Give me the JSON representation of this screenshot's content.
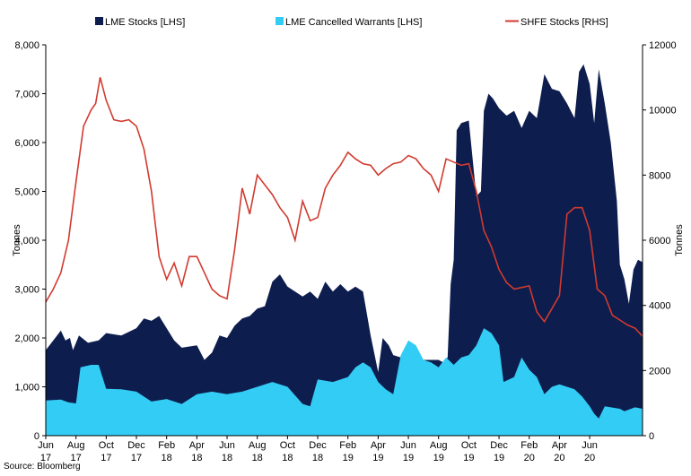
{
  "colors": {
    "lme_stocks": "#0d1d4d",
    "lme_cw": "#33ccf5",
    "shfe": "#d13a2f"
  },
  "source": "Source: Bloomberg",
  "chart_data": {
    "type": "area",
    "ylabel_left": "Tonnes",
    "ylabel_right": "Tonnes",
    "ylim_left": [
      0,
      8000
    ],
    "ylim_right": [
      0,
      12000
    ],
    "yticks_left": [
      "0",
      "1,000",
      "2,000",
      "3,000",
      "4,000",
      "5,000",
      "6,000",
      "7,000",
      "8,000"
    ],
    "yticks_right": [
      "0",
      "2000",
      "4000",
      "6000",
      "8000",
      "10000",
      "12000"
    ],
    "xtick_labels": [
      [
        "Jun",
        "17"
      ],
      [
        "Aug",
        "17"
      ],
      [
        "Oct",
        "17"
      ],
      [
        "Dec",
        "17"
      ],
      [
        "Feb",
        "18"
      ],
      [
        "Apr",
        "18"
      ],
      [
        "Jun",
        "18"
      ],
      [
        "Aug",
        "18"
      ],
      [
        "Oct",
        "18"
      ],
      [
        "Dec",
        "18"
      ],
      [
        "Feb",
        "19"
      ],
      [
        "Apr",
        "19"
      ],
      [
        "Jun",
        "19"
      ],
      [
        "Aug",
        "19"
      ],
      [
        "Oct",
        "19"
      ],
      [
        "Dec",
        "19"
      ],
      [
        "Feb",
        "20"
      ],
      [
        "Apr",
        "20"
      ],
      [
        "Jun",
        "20"
      ]
    ],
    "x_months": [
      0,
      37
    ],
    "grid": false,
    "legend_position": "top",
    "series": [
      {
        "name": "LME Stocks [LHS]",
        "axis": "left",
        "kind": "area",
        "points": [
          [
            0,
            1750
          ],
          [
            0.5,
            1950
          ],
          [
            1,
            2150
          ],
          [
            1.3,
            1950
          ],
          [
            1.6,
            2000
          ],
          [
            1.8,
            1750
          ],
          [
            2.2,
            2050
          ],
          [
            2.8,
            1900
          ],
          [
            3.5,
            1950
          ],
          [
            4,
            2100
          ],
          [
            5,
            2050
          ],
          [
            6,
            2200
          ],
          [
            6.5,
            2400
          ],
          [
            7,
            2350
          ],
          [
            7.5,
            2450
          ],
          [
            8,
            2200
          ],
          [
            8.5,
            1950
          ],
          [
            9,
            1800
          ],
          [
            10,
            1850
          ],
          [
            10.5,
            1550
          ],
          [
            11,
            1700
          ],
          [
            11.5,
            2050
          ],
          [
            12,
            2000
          ],
          [
            12.5,
            2250
          ],
          [
            13,
            2400
          ],
          [
            13.5,
            2450
          ],
          [
            14,
            2600
          ],
          [
            14.5,
            2650
          ],
          [
            15,
            3150
          ],
          [
            15.5,
            3300
          ],
          [
            16,
            3050
          ],
          [
            16.5,
            2950
          ],
          [
            17,
            2850
          ],
          [
            17.5,
            2950
          ],
          [
            18,
            2800
          ],
          [
            18.5,
            3150
          ],
          [
            19,
            2950
          ],
          [
            19.5,
            3100
          ],
          [
            20,
            2950
          ],
          [
            20.5,
            3050
          ],
          [
            21,
            2950
          ],
          [
            21.5,
            2050
          ],
          [
            22,
            1300
          ],
          [
            22.3,
            2000
          ],
          [
            22.7,
            1850
          ],
          [
            23,
            1650
          ],
          [
            23.5,
            1600
          ],
          [
            24,
            1550
          ],
          [
            24.5,
            1600
          ],
          [
            25,
            1550
          ],
          [
            25.5,
            1550
          ],
          [
            26,
            1550
          ],
          [
            26.3,
            1500
          ],
          [
            26.6,
            1600
          ],
          [
            26.8,
            3100
          ],
          [
            27,
            3600
          ],
          [
            27.2,
            6250
          ],
          [
            27.5,
            6400
          ],
          [
            28,
            6450
          ],
          [
            28.5,
            4900
          ],
          [
            28.8,
            5000
          ],
          [
            29,
            6650
          ],
          [
            29.3,
            7000
          ],
          [
            29.6,
            6900
          ],
          [
            30,
            6700
          ],
          [
            30.5,
            6550
          ],
          [
            31,
            6650
          ],
          [
            31.5,
            6300
          ],
          [
            32,
            6650
          ],
          [
            32.5,
            6500
          ],
          [
            33,
            7400
          ],
          [
            33.5,
            7100
          ],
          [
            34,
            7050
          ],
          [
            34.5,
            6800
          ],
          [
            35,
            6500
          ],
          [
            35.3,
            7450
          ],
          [
            35.6,
            7600
          ],
          [
            36,
            7200
          ],
          [
            36.3,
            6400
          ],
          [
            36.6,
            7500
          ],
          [
            37,
            6800
          ],
          [
            37.4,
            6000
          ],
          [
            37.8,
            4800
          ],
          [
            38,
            3500
          ],
          [
            38.3,
            3200
          ],
          [
            38.6,
            2700
          ],
          [
            38.9,
            3400
          ],
          [
            39.2,
            3600
          ],
          [
            39.5,
            3550
          ]
        ]
      },
      {
        "name": "LME Cancelled Warrants [LHS]",
        "axis": "left",
        "kind": "area",
        "points": [
          [
            0,
            720
          ],
          [
            1,
            740
          ],
          [
            1.5,
            680
          ],
          [
            2,
            660
          ],
          [
            2.3,
            1400
          ],
          [
            3,
            1450
          ],
          [
            3.5,
            1450
          ],
          [
            4,
            960
          ],
          [
            5,
            950
          ],
          [
            6,
            900
          ],
          [
            7,
            700
          ],
          [
            8,
            750
          ],
          [
            9,
            650
          ],
          [
            10,
            850
          ],
          [
            11,
            900
          ],
          [
            12,
            850
          ],
          [
            13,
            900
          ],
          [
            14,
            1000
          ],
          [
            15,
            1100
          ],
          [
            16,
            1000
          ],
          [
            17,
            650
          ],
          [
            17.5,
            600
          ],
          [
            18,
            1150
          ],
          [
            19,
            1100
          ],
          [
            20,
            1200
          ],
          [
            20.5,
            1400
          ],
          [
            21,
            1500
          ],
          [
            21.5,
            1400
          ],
          [
            22,
            1100
          ],
          [
            22.5,
            950
          ],
          [
            23,
            850
          ],
          [
            23.5,
            1650
          ],
          [
            24,
            1950
          ],
          [
            24.5,
            1850
          ],
          [
            25,
            1550
          ],
          [
            25.5,
            1500
          ],
          [
            26,
            1400
          ],
          [
            26.5,
            1600
          ],
          [
            27,
            1450
          ],
          [
            27.5,
            1600
          ],
          [
            28,
            1650
          ],
          [
            28.5,
            1850
          ],
          [
            29,
            2200
          ],
          [
            29.5,
            2100
          ],
          [
            30,
            1850
          ],
          [
            30.3,
            1100
          ],
          [
            31,
            1200
          ],
          [
            31.5,
            1600
          ],
          [
            32,
            1350
          ],
          [
            32.5,
            1200
          ],
          [
            33,
            850
          ],
          [
            33.5,
            1000
          ],
          [
            34,
            1050
          ],
          [
            35,
            950
          ],
          [
            35.5,
            800
          ],
          [
            36,
            600
          ],
          [
            36.3,
            450
          ],
          [
            36.6,
            350
          ],
          [
            37,
            600
          ],
          [
            38,
            550
          ],
          [
            38.3,
            500
          ],
          [
            39,
            580
          ],
          [
            39.5,
            550
          ]
        ]
      },
      {
        "name": "SHFE Stocks [RHS]",
        "axis": "right",
        "kind": "line",
        "points": [
          [
            0,
            4100
          ],
          [
            0.5,
            4500
          ],
          [
            1,
            5000
          ],
          [
            1.5,
            6000
          ],
          [
            2,
            7800
          ],
          [
            2.5,
            9500
          ],
          [
            3,
            10000
          ],
          [
            3.3,
            10200
          ],
          [
            3.6,
            11000
          ],
          [
            4,
            10300
          ],
          [
            4.5,
            9700
          ],
          [
            5,
            9650
          ],
          [
            5.5,
            9700
          ],
          [
            6,
            9500
          ],
          [
            6.5,
            8800
          ],
          [
            7,
            7500
          ],
          [
            7.5,
            5500
          ],
          [
            8,
            4800
          ],
          [
            8.5,
            5300
          ],
          [
            9,
            4600
          ],
          [
            9.5,
            5500
          ],
          [
            10,
            5500
          ],
          [
            10.5,
            5000
          ],
          [
            11,
            4500
          ],
          [
            11.5,
            4300
          ],
          [
            12,
            4200
          ],
          [
            12.5,
            5700
          ],
          [
            13,
            7600
          ],
          [
            13.5,
            6800
          ],
          [
            14,
            8000
          ],
          [
            14.5,
            7700
          ],
          [
            15,
            7400
          ],
          [
            15.5,
            7000
          ],
          [
            16,
            6700
          ],
          [
            16.5,
            6000
          ],
          [
            17,
            7200
          ],
          [
            17.5,
            6600
          ],
          [
            18,
            6700
          ],
          [
            18.5,
            7600
          ],
          [
            19,
            8000
          ],
          [
            19.5,
            8300
          ],
          [
            20,
            8700
          ],
          [
            20.5,
            8500
          ],
          [
            21,
            8350
          ],
          [
            21.5,
            8300
          ],
          [
            22,
            8000
          ],
          [
            22.5,
            8200
          ],
          [
            23,
            8350
          ],
          [
            23.5,
            8400
          ],
          [
            24,
            8600
          ],
          [
            24.5,
            8500
          ],
          [
            25,
            8200
          ],
          [
            25.5,
            8000
          ],
          [
            26,
            7500
          ],
          [
            26.5,
            8500
          ],
          [
            27,
            8400
          ],
          [
            27.5,
            8300
          ],
          [
            28,
            8350
          ],
          [
            28.5,
            7500
          ],
          [
            29,
            6300
          ],
          [
            29.5,
            5800
          ],
          [
            30,
            5100
          ],
          [
            30.5,
            4700
          ],
          [
            31,
            4500
          ],
          [
            31.5,
            4550
          ],
          [
            32,
            4600
          ],
          [
            32.5,
            3800
          ],
          [
            33,
            3500
          ],
          [
            33.5,
            3900
          ],
          [
            34,
            4300
          ],
          [
            34.5,
            6800
          ],
          [
            35,
            7000
          ],
          [
            35.5,
            7000
          ],
          [
            36,
            6300
          ],
          [
            36.5,
            4500
          ],
          [
            37,
            4300
          ],
          [
            37.5,
            3700
          ],
          [
            38,
            3550
          ],
          [
            38.5,
            3400
          ],
          [
            39,
            3300
          ],
          [
            39.5,
            3050
          ]
        ]
      }
    ]
  }
}
